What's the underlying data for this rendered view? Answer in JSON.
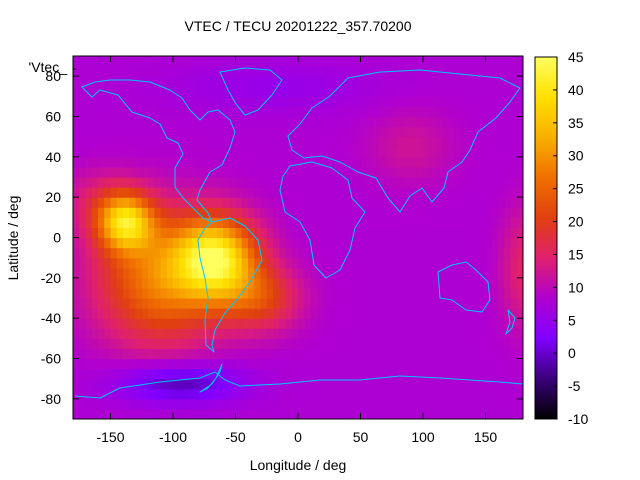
{
  "chart_data": {
    "type": "heatmap",
    "title": "VTEC / TECU 20201222_357.70200",
    "xlabel": "Longitude / deg",
    "ylabel": "Latitude / deg",
    "xlim": [
      -180,
      180
    ],
    "ylim": [
      -90,
      90
    ],
    "x_ticks": [
      -150,
      -100,
      -50,
      0,
      50,
      100,
      150
    ],
    "y_ticks": [
      -80,
      -60,
      -40,
      -20,
      0,
      20,
      40,
      60,
      80
    ],
    "colorbar": {
      "min": -10,
      "max": 45,
      "ticks": [
        -10,
        -5,
        0,
        5,
        10,
        15,
        20,
        25,
        30,
        35,
        40,
        45
      ],
      "palette": [
        "#000000",
        "#3a007a",
        "#8000ff",
        "#b000d0",
        "#e0206e",
        "#e04010",
        "#f07000",
        "#f8b000",
        "#ffe000",
        "#ffff60"
      ]
    },
    "legend_entry": "'Vtec_",
    "overlay": "continent coastlines",
    "features": [
      {
        "name": "south-america-maximum",
        "lon": -65,
        "lat": -10,
        "value": 42
      },
      {
        "name": "pacific-maximum",
        "lon": -138,
        "lat": 8,
        "value": 38
      },
      {
        "name": "south-atlantic-high",
        "lon": -30,
        "lat": -30,
        "value": 24
      },
      {
        "name": "antarctic-minimum",
        "lon": -95,
        "lat": -70,
        "value": -2
      }
    ]
  }
}
